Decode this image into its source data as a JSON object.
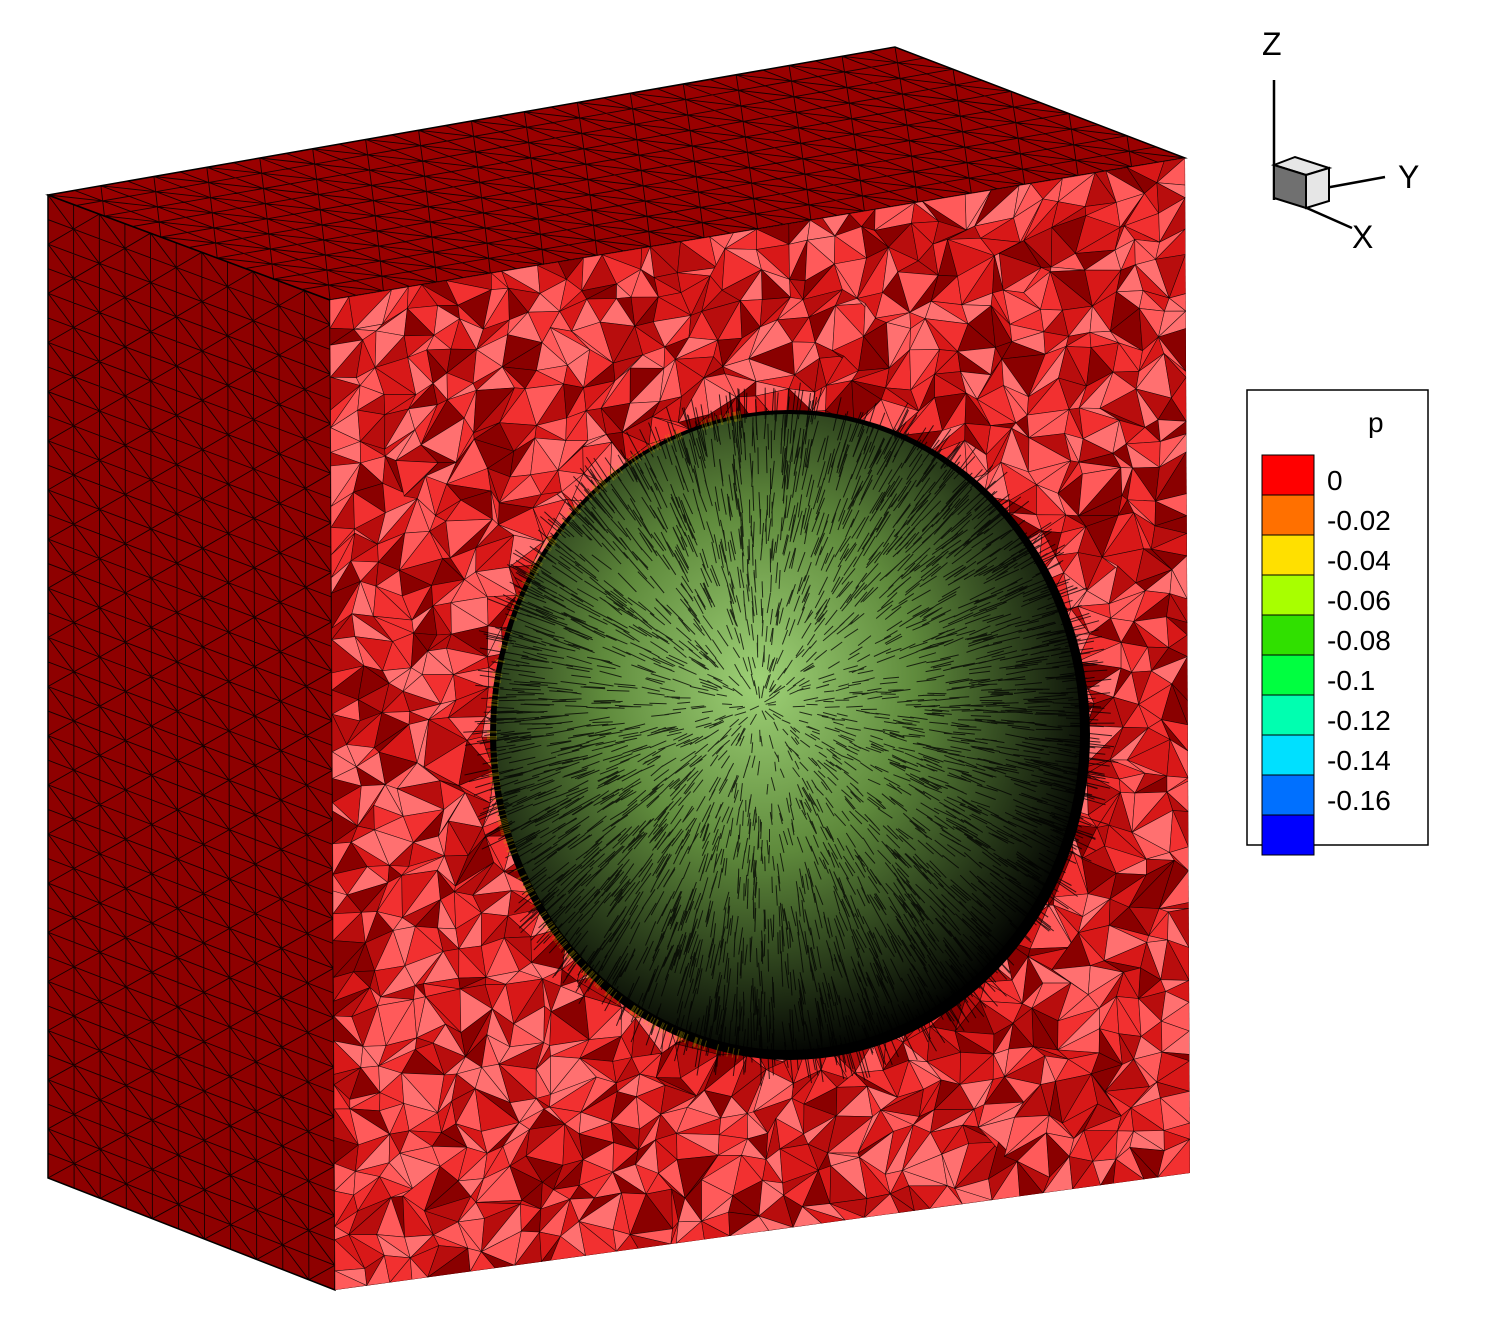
{
  "figure": {
    "box": {
      "side_face_color": "#8e0000",
      "top_face_color": "#9a0000",
      "cut_face_base_color": "#e81d1d",
      "cut_face_shades": [
        "#ff5a5a",
        "#f23030",
        "#d81818",
        "#b80d0d",
        "#8a0000",
        "#ff7070"
      ],
      "mesh_line_color": "#000000"
    },
    "sphere": {
      "center_color": "#9fd277",
      "mid_color": "#5f8a3c",
      "edge_color": "#000000",
      "vector_color": "#000000",
      "rim_accent_color": "#c8b000"
    }
  },
  "axes_triad": {
    "z_label": "Z",
    "y_label": "Y",
    "x_label": "X",
    "cube_light_color": "#e6e6e6",
    "cube_dark_color": "#707070"
  },
  "legend": {
    "title": "p",
    "levels": [
      {
        "label": "0",
        "color": "#ff0000"
      },
      {
        "label": "-0.02",
        "color": "#ff7000"
      },
      {
        "label": "-0.04",
        "color": "#ffe000"
      },
      {
        "label": "-0.06",
        "color": "#a8ff00"
      },
      {
        "label": "-0.08",
        "color": "#30e000"
      },
      {
        "label": "-0.1",
        "color": "#00ff40"
      },
      {
        "label": "-0.12",
        "color": "#00ffb0"
      },
      {
        "label": "-0.14",
        "color": "#00e0ff"
      },
      {
        "label": "-0.16",
        "color": "#0070ff"
      },
      {
        "label": "",
        "color": "#0000ff"
      }
    ]
  }
}
